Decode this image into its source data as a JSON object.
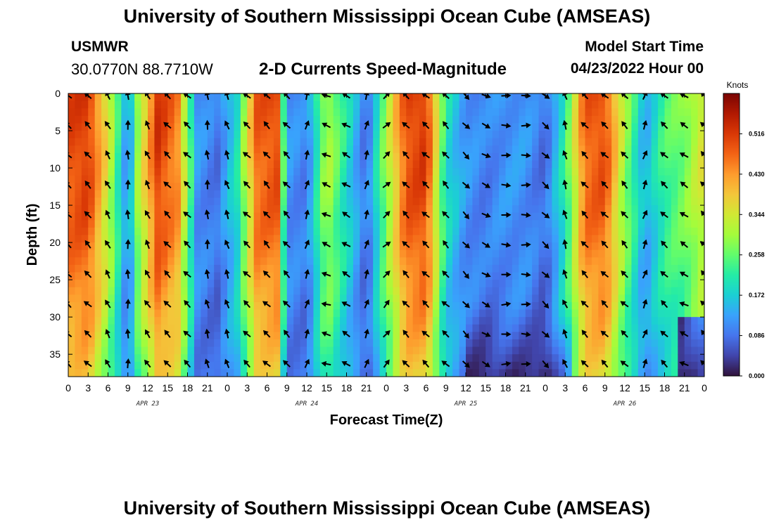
{
  "header": {
    "title": "University of Southern Mississippi Ocean Cube (AMSEAS)",
    "station_id": "USMWR",
    "station_coords": "30.0770N  88.7710W",
    "plot_title": "2-D Currents Speed-Magnitude",
    "model_start_label": "Model Start Time",
    "model_start_value": "04/23/2022 Hour 00"
  },
  "footer": {
    "title": "University of Southern Mississippi Ocean Cube (AMSEAS)"
  },
  "chart_data": {
    "type": "heatmap",
    "title": "2-D Currents Speed-Magnitude",
    "xlabel": "Forecast Time(Z)",
    "ylabel": "Depth (ft)",
    "x_range_hours": [
      0,
      96
    ],
    "x_tick_hours": [
      0,
      3,
      6,
      9,
      12,
      15,
      18,
      21,
      24,
      27,
      30,
      33,
      36,
      39,
      42,
      45,
      48,
      51,
      54,
      57,
      60,
      63,
      66,
      69,
      72,
      75,
      78,
      81,
      84,
      87,
      90,
      93,
      96
    ],
    "x_tick_labels": [
      "0",
      "3",
      "6",
      "9",
      "12",
      "15",
      "18",
      "21",
      "0",
      "3",
      "6",
      "9",
      "12",
      "15",
      "18",
      "21",
      "0",
      "3",
      "6",
      "9",
      "12",
      "15",
      "18",
      "21",
      "0",
      "3",
      "6",
      "9",
      "12",
      "15",
      "18",
      "21",
      "0"
    ],
    "date_labels": [
      {
        "hour": 12,
        "text": "APR 23"
      },
      {
        "hour": 36,
        "text": "APR 24"
      },
      {
        "hour": 60,
        "text": "APR 25"
      },
      {
        "hour": 84,
        "text": "APR 26"
      }
    ],
    "y_range_ft": [
      0,
      38
    ],
    "y_ticks": [
      0,
      5,
      10,
      15,
      20,
      25,
      30,
      35
    ],
    "y_tick_labels": [
      "0",
      "5",
      "10",
      "15",
      "20",
      "25",
      "30",
      "35"
    ],
    "colorbar": {
      "title": "Knots",
      "range": [
        0,
        0.602
      ],
      "ticks": [
        0.0,
        0.086,
        0.172,
        0.258,
        0.344,
        0.43,
        0.516
      ],
      "tick_labels": [
        "0.000",
        "0.086",
        "0.172",
        "0.258",
        "0.344",
        "0.430",
        "0.516"
      ],
      "colors": [
        "#30123b",
        "#4145ab",
        "#4675ed",
        "#39a2fc",
        "#1bcfd4",
        "#24eca6",
        "#61fc6c",
        "#a4fc3b",
        "#d1e834",
        "#f3c63a",
        "#fe9b2d",
        "#f36315",
        "#d93806",
        "#b11901",
        "#7a0403"
      ]
    },
    "speed_bands_knots": [
      {
        "hour": 0,
        "speed": 0.5
      },
      {
        "hour": 3,
        "speed": 0.52
      },
      {
        "hour": 6,
        "speed": 0.35
      },
      {
        "hour": 9,
        "speed": 0.1
      },
      {
        "hour": 10.5,
        "speed": 0.3
      },
      {
        "hour": 13.5,
        "speed": 0.52
      },
      {
        "hour": 16.5,
        "speed": 0.45
      },
      {
        "hour": 19.5,
        "speed": 0.12
      },
      {
        "hour": 22.5,
        "speed": 0.09
      },
      {
        "hour": 25.5,
        "speed": 0.2
      },
      {
        "hour": 28.5,
        "speed": 0.48
      },
      {
        "hour": 31.5,
        "speed": 0.5
      },
      {
        "hour": 33,
        "speed": 0.12
      },
      {
        "hour": 36,
        "speed": 0.1
      },
      {
        "hour": 39,
        "speed": 0.32
      },
      {
        "hour": 42,
        "speed": 0.2
      },
      {
        "hour": 45,
        "speed": 0.08
      },
      {
        "hour": 48,
        "speed": 0.3
      },
      {
        "hour": 51,
        "speed": 0.5
      },
      {
        "hour": 54,
        "speed": 0.52
      },
      {
        "hour": 57,
        "speed": 0.2
      },
      {
        "hour": 60,
        "speed": 0.12
      },
      {
        "hour": 63,
        "speed": 0.1
      },
      {
        "hour": 66,
        "speed": 0.12
      },
      {
        "hour": 69,
        "speed": 0.12
      },
      {
        "hour": 72,
        "speed": 0.08
      },
      {
        "hour": 75,
        "speed": 0.22
      },
      {
        "hour": 78,
        "speed": 0.48
      },
      {
        "hour": 81,
        "speed": 0.5
      },
      {
        "hour": 84,
        "speed": 0.3
      },
      {
        "hour": 87,
        "speed": 0.14
      },
      {
        "hour": 90,
        "speed": 0.24
      },
      {
        "hour": 93,
        "speed": 0.28
      },
      {
        "hour": 96,
        "speed": 0.36
      }
    ],
    "arrow_directions_deg": [
      {
        "hour": 0,
        "dir": 135
      },
      {
        "hour": 3,
        "dir": 135
      },
      {
        "hour": 6,
        "dir": 150
      },
      {
        "hour": 9,
        "dir": 180
      },
      {
        "hour": 12,
        "dir": 150
      },
      {
        "hour": 15,
        "dir": 135
      },
      {
        "hour": 18,
        "dir": 135
      },
      {
        "hour": 21,
        "dir": 170
      },
      {
        "hour": 24,
        "dir": 160
      },
      {
        "hour": 27,
        "dir": 135
      },
      {
        "hour": 30,
        "dir": 135
      },
      {
        "hour": 33,
        "dir": 135
      },
      {
        "hour": 36,
        "dir": 200
      },
      {
        "hour": 39,
        "dir": 110
      },
      {
        "hour": 42,
        "dir": 120
      },
      {
        "hour": 45,
        "dir": 200
      },
      {
        "hour": 48,
        "dir": 225
      },
      {
        "hour": 51,
        "dir": 135
      },
      {
        "hour": 54,
        "dir": 135
      },
      {
        "hour": 57,
        "dir": 135
      },
      {
        "hour": 60,
        "dir": 315
      },
      {
        "hour": 63,
        "dir": 300
      },
      {
        "hour": 66,
        "dir": 270
      },
      {
        "hour": 69,
        "dir": 270
      },
      {
        "hour": 72,
        "dir": 315
      },
      {
        "hour": 75,
        "dir": 160
      },
      {
        "hour": 78,
        "dir": 135
      },
      {
        "hour": 81,
        "dir": 135
      },
      {
        "hour": 84,
        "dir": 135
      },
      {
        "hour": 87,
        "dir": 200
      },
      {
        "hour": 90,
        "dir": 135
      },
      {
        "hour": 93,
        "dir": 120
      },
      {
        "hour": 96,
        "dir": 135
      }
    ]
  }
}
